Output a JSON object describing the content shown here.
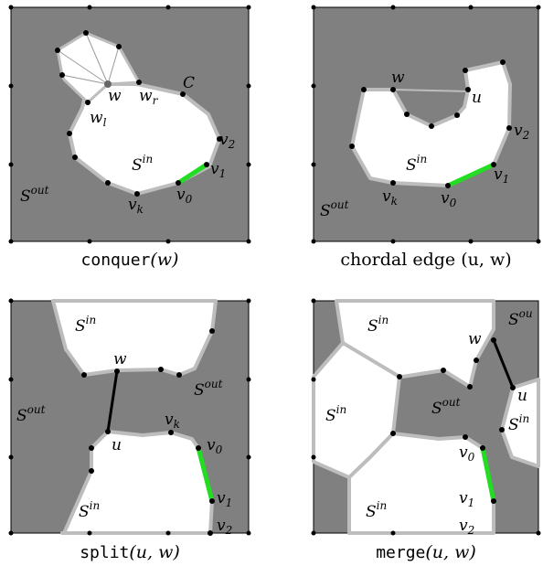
{
  "panels": {
    "conquer": {
      "caption_fn": "conquer",
      "caption_arg": "(w)",
      "labels": {
        "S_in": "S",
        "S_in_sup": "in",
        "S_out": "S",
        "S_out_sup": "out",
        "w": "w",
        "w_r": "w",
        "w_r_sub": "r",
        "w_l": "w",
        "w_l_sub": "l",
        "C": "C",
        "v0": "v",
        "v0_sub": "0",
        "v1": "v",
        "v1_sub": "1",
        "v2": "v",
        "v2_sub": "2",
        "vk": "v",
        "vk_sub": "k"
      }
    },
    "chordal": {
      "caption": "chordal edge (u, w)",
      "labels": {
        "S_in": "S",
        "S_in_sup": "in",
        "S_out": "S",
        "S_out_sup": "out",
        "w": "w",
        "u": "u",
        "v0": "v",
        "v0_sub": "0",
        "v1": "v",
        "v1_sub": "1",
        "v2": "v",
        "v2_sub": "2",
        "vk": "v",
        "vk_sub": "k"
      }
    },
    "split": {
      "caption_fn": "split",
      "caption_arg": "(u, w)",
      "labels": {
        "S_in_top": "S",
        "S_in_bottom": "S",
        "S_in_sup": "in",
        "S_out_left": "S",
        "S_out_right": "S",
        "S_out_sup": "out",
        "w": "w",
        "u": "u",
        "v0": "v",
        "v0_sub": "0",
        "v1": "v",
        "v1_sub": "1",
        "v2": "v",
        "v2_sub": "2",
        "vk": "v",
        "vk_sub": "k"
      }
    },
    "merge": {
      "caption_fn": "merge",
      "caption_arg": "(u, w)",
      "labels": {
        "S_in_top": "S",
        "S_in_left": "S",
        "S_in_bottom": "S",
        "S_in_right": "S",
        "S_in_sup": "in",
        "S_out_mid": "S",
        "S_out_corner": "S",
        "S_out_sup": "out",
        "S_out_corner_sup": "ou",
        "w": "w",
        "u": "u",
        "v0": "v",
        "v0_sub": "0",
        "v1": "v",
        "v1_sub": "1",
        "v2": "v",
        "v2_sub": "2"
      }
    }
  },
  "colors": {
    "outside": "#808080",
    "inside": "#ffffff",
    "boundary": "#bdbdbd",
    "highlight_edge": "#22dd22",
    "chord": "#000000"
  }
}
